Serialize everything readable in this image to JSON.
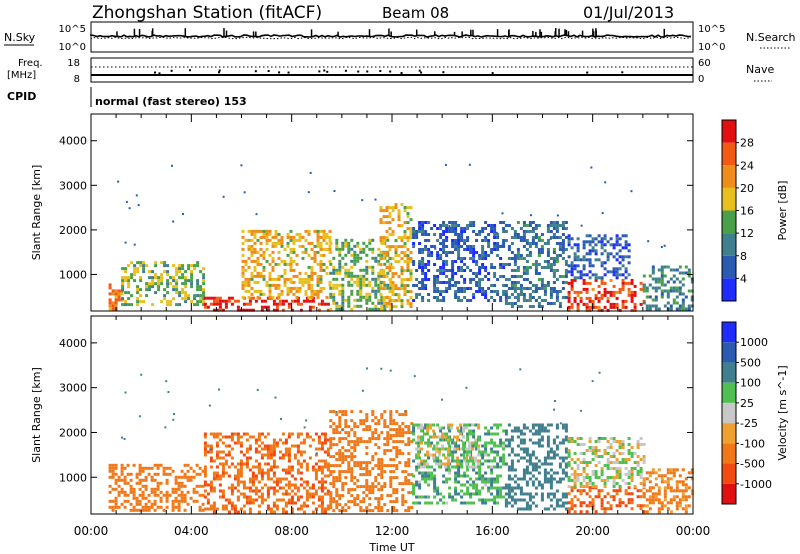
{
  "header": {
    "station": "Zhongshan Station (fitACF)",
    "beam": "Beam 08",
    "date": "01/Jul/2013"
  },
  "top_panels": {
    "nsky_label": "N.Sky",
    "nsearch_label": "N.Search",
    "noise_ticks": [
      "10^5",
      "10^0"
    ],
    "freq_label_line1": "Freq.",
    "freq_label_line2": "[MHz]",
    "freq_ticks": [
      "18",
      "8"
    ],
    "nave_label": "Nave",
    "nave_ticks": [
      "60",
      "0"
    ],
    "cpid_label": "CPID",
    "cpid_text": "normal (fast stereo) 153"
  },
  "chart_data": [
    {
      "type": "heatmap",
      "title": "",
      "xlabel": "Time UT",
      "ylabel": "Slant Range [km]",
      "ylim": [
        180,
        4600
      ],
      "y_ticks": [
        "1000",
        "2000",
        "3000",
        "4000"
      ],
      "x_ticks": [
        "00:00",
        "04:00",
        "08:00",
        "12:00",
        "16:00",
        "20:00",
        "00:00"
      ],
      "xlim_hours": [
        0,
        24
      ],
      "colorbar": {
        "label": "Power [dB]",
        "ticks": [
          "4",
          "8",
          "12",
          "16",
          "20",
          "24",
          "28"
        ],
        "range": [
          0,
          30
        ],
        "colors": [
          "#1e2cff",
          "#2a5bb0",
          "#3f7f8e",
          "#4aa04a",
          "#e8c01e",
          "#f08c1a",
          "#f25a14",
          "#e01010"
        ]
      },
      "regions": [
        {
          "t0": 0.7,
          "t1": 1.2,
          "r0": 200,
          "r1": 800,
          "level": 22
        },
        {
          "t0": 1.2,
          "t1": 4.5,
          "r0": 300,
          "r1": 1300,
          "level": 14
        },
        {
          "t0": 4.5,
          "t1": 9.5,
          "r0": 200,
          "r1": 500,
          "level": 28
        },
        {
          "t0": 6.0,
          "t1": 9.5,
          "r0": 500,
          "r1": 2000,
          "level": 18
        },
        {
          "t0": 9.5,
          "t1": 12.0,
          "r0": 250,
          "r1": 1800,
          "level": 14
        },
        {
          "t0": 11.5,
          "t1": 12.8,
          "r0": 300,
          "r1": 2600,
          "level": 18
        },
        {
          "t0": 12.8,
          "t1": 16.5,
          "r0": 400,
          "r1": 2200,
          "level": 6
        },
        {
          "t0": 16.5,
          "t1": 19.0,
          "r0": 300,
          "r1": 2200,
          "level": 8
        },
        {
          "t0": 19.0,
          "t1": 22.0,
          "r0": 200,
          "r1": 900,
          "level": 26
        },
        {
          "t0": 19.0,
          "t1": 21.5,
          "r0": 900,
          "r1": 1900,
          "level": 6
        },
        {
          "t0": 22.0,
          "t1": 24.0,
          "r0": 200,
          "r1": 1200,
          "level": 10
        }
      ]
    },
    {
      "type": "heatmap",
      "title": "",
      "xlabel": "Time UT",
      "ylabel": "Slant Range [km]",
      "ylim": [
        180,
        4600
      ],
      "y_ticks": [
        "1000",
        "2000",
        "3000",
        "4000"
      ],
      "x_ticks": [
        "00:00",
        "04:00",
        "08:00",
        "12:00",
        "16:00",
        "20:00",
        "00:00"
      ],
      "xlim_hours": [
        0,
        24
      ],
      "colorbar": {
        "label": "Velocity [m s^-1]",
        "ticks": [
          "1000",
          "500",
          "100",
          "25",
          "-25",
          "-100",
          "-500",
          "-1000"
        ],
        "colors": [
          "#1e2cff",
          "#2a5bb0",
          "#3f7f8e",
          "#4fc04f",
          "#c8c8c8",
          "#f0a030",
          "#f07818",
          "#f24a10",
          "#e01010"
        ]
      },
      "regions": [
        {
          "t0": 0.7,
          "t1": 4.5,
          "r0": 250,
          "r1": 1300,
          "level": -150
        },
        {
          "t0": 4.5,
          "t1": 9.5,
          "r0": 250,
          "r1": 2000,
          "level": -250
        },
        {
          "t0": 9.5,
          "t1": 12.8,
          "r0": 250,
          "r1": 2500,
          "level": -150
        },
        {
          "t0": 12.8,
          "t1": 16.5,
          "r0": 400,
          "r1": 2200,
          "level": 50
        },
        {
          "t0": 13.0,
          "t1": 15.5,
          "r0": 1200,
          "r1": 2200,
          "level": 0
        },
        {
          "t0": 16.5,
          "t1": 19.0,
          "r0": 300,
          "r1": 2200,
          "level": 150
        },
        {
          "t0": 19.0,
          "t1": 22.0,
          "r0": 200,
          "r1": 800,
          "level": -300
        },
        {
          "t0": 19.0,
          "t1": 22.0,
          "r0": 800,
          "r1": 1900,
          "level": 0
        },
        {
          "t0": 22.0,
          "t1": 24.0,
          "r0": 200,
          "r1": 1200,
          "level": -80
        }
      ]
    }
  ]
}
